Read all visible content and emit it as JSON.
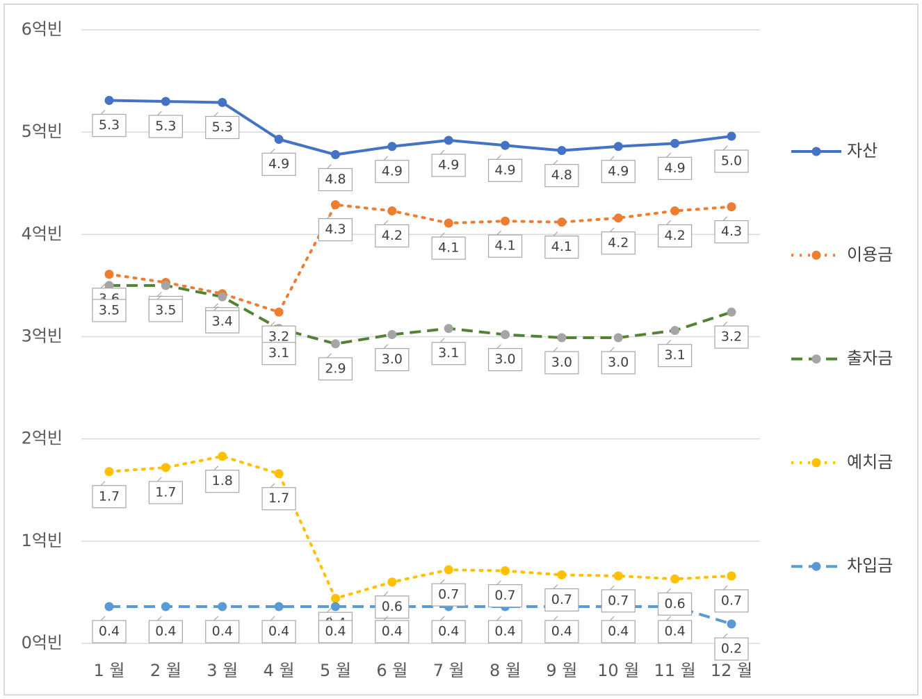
{
  "chart_data": {
    "type": "line",
    "categories": [
      "1 월",
      "2 월",
      "3 월",
      "4 월",
      "5 월",
      "6 월",
      "7 월",
      "8 월",
      "9 월",
      "10 월",
      "11 월",
      "12 월"
    ],
    "ylim": [
      0,
      6
    ],
    "yticks": [
      {
        "value": 0,
        "label": "0억빈"
      },
      {
        "value": 1,
        "label": "1억빈"
      },
      {
        "value": 2,
        "label": "2억빈"
      },
      {
        "value": 3,
        "label": "3억빈"
      },
      {
        "value": 4,
        "label": "4억빈"
      },
      {
        "value": 5,
        "label": "5억빈"
      },
      {
        "value": 6,
        "label": "6억빈"
      }
    ],
    "grid": true,
    "legend": "right",
    "series": [
      {
        "name": "자산",
        "color": "#4472c4",
        "line_style": "solid",
        "values": [
          5.31,
          5.3,
          5.29,
          4.93,
          4.78,
          4.86,
          4.92,
          4.87,
          4.82,
          4.86,
          4.89,
          4.96
        ],
        "value_labels": [
          "5.3",
          "5.3",
          "5.3",
          "4.9",
          "4.8",
          "4.9",
          "4.9",
          "4.9",
          "4.8",
          "4.9",
          "4.9",
          "5.0"
        ]
      },
      {
        "name": "이용금",
        "color": "#ed7d31",
        "line_style": "dotted",
        "values": [
          3.61,
          3.53,
          3.42,
          3.24,
          4.29,
          4.23,
          4.11,
          4.13,
          4.12,
          4.16,
          4.23,
          4.27
        ],
        "value_labels": [
          "3.6",
          "3.5",
          "3.4",
          "3.2",
          "4.3",
          "4.2",
          "4.1",
          "4.1",
          "4.1",
          "4.2",
          "4.2",
          "4.3"
        ]
      },
      {
        "name": "출자금",
        "color": "#548235",
        "marker_color": "#a5a5a5",
        "line_style": "dashed",
        "values": [
          3.5,
          3.5,
          3.39,
          3.08,
          2.93,
          3.02,
          3.08,
          3.02,
          2.99,
          2.99,
          3.06,
          3.24
        ],
        "value_labels": [
          "3.5",
          "3.5",
          "3.4",
          "3.1",
          "2.9",
          "3.0",
          "3.1",
          "3.0",
          "3.0",
          "3.0",
          "3.1",
          "3.2"
        ]
      },
      {
        "name": "예치금",
        "color": "#ffc000",
        "line_style": "dotted",
        "values": [
          1.68,
          1.72,
          1.83,
          1.66,
          0.44,
          0.6,
          0.72,
          0.71,
          0.67,
          0.66,
          0.63,
          0.66
        ],
        "value_labels": [
          "1.7",
          "1.7",
          "1.8",
          "1.7",
          "0.4",
          "0.6",
          "0.7",
          "0.7",
          "0.7",
          "0.7",
          "0.6",
          "0.7"
        ]
      },
      {
        "name": "차입금",
        "color": "#5b9bd5",
        "line_style": "dashed",
        "values": [
          0.36,
          0.36,
          0.36,
          0.36,
          0.36,
          0.36,
          0.36,
          0.36,
          0.36,
          0.36,
          0.36,
          0.19
        ],
        "value_labels": [
          "0.4",
          "0.4",
          "0.4",
          "0.4",
          "0.4",
          "0.4",
          "0.4",
          "0.4",
          "0.4",
          "0.4",
          "0.4",
          "0.2"
        ]
      }
    ]
  }
}
